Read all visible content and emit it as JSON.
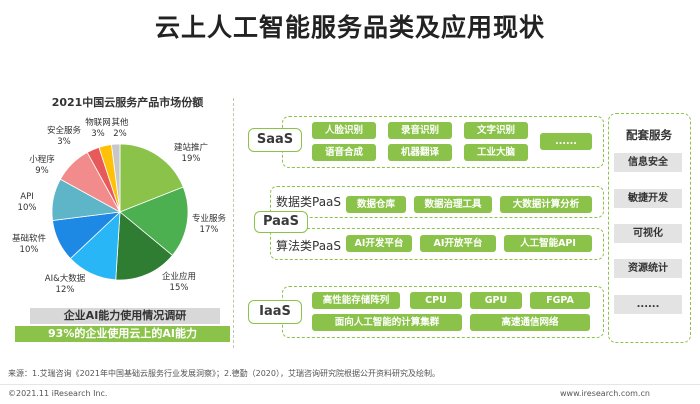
{
  "title": "云上人工智能服务品类及应用现状",
  "chart_data": {
    "type": "pie",
    "title": "2021中国云服务产品市场份额",
    "categories": [
      "建站推广",
      "专业服务",
      "企业应用",
      "AI&大数据",
      "基础软件",
      "API",
      "小程序",
      "安全服务",
      "物联网",
      "其他"
    ],
    "values": [
      19,
      17,
      15,
      12,
      10,
      10,
      9,
      3,
      3,
      2
    ],
    "value_labels": [
      "19%",
      "17%",
      "15%",
      "12%",
      "10%",
      "10%",
      "9%",
      "3%",
      "3%",
      "2%"
    ],
    "colors": [
      "#8bc34a",
      "#4caf50",
      "#2e7d32",
      "#29b6f6",
      "#1e88e5",
      "#5fb5c8",
      "#f28b8b",
      "#e85a5a",
      "#ffc107",
      "#c7c7c7"
    ]
  },
  "survey": {
    "heading": "企业AI能力使用情况调研",
    "result": "93%的企业使用云上的AI能力"
  },
  "saas": {
    "tag": "SaaS",
    "items": [
      "人脸识别",
      "录音识别",
      "文字识别",
      "......",
      "语音合成",
      "机器翻译",
      "工业大脑"
    ]
  },
  "paas": {
    "tag": "PaaS",
    "data_label": "数据类PaaS",
    "algo_label": "算法类PaaS",
    "data_items": [
      "数据仓库",
      "数据治理工具",
      "大数据计算分析"
    ],
    "algo_items": [
      "AI开发平台",
      "AI开放平台",
      "人工智能API"
    ]
  },
  "iaas": {
    "tag": "IaaS",
    "items": [
      "高性能存储阵列",
      "CPU",
      "GPU",
      "FGPA",
      "面向人工智能的计算集群",
      "高速通信网络"
    ]
  },
  "support": {
    "title": "配套服务",
    "items": [
      "信息安全",
      "敏捷开发",
      "可视化",
      "资源统计",
      "......"
    ]
  },
  "footer": {
    "source": "来源：1.艾瑞咨询《2021年中国基础云服务行业发展洞察》；2.德勤（2020），艾瑞咨询研究院根据公开资料研究及绘制。",
    "copyright": "©2021.11 iResearch Inc.",
    "website": "www.iresearch.com.cn"
  }
}
